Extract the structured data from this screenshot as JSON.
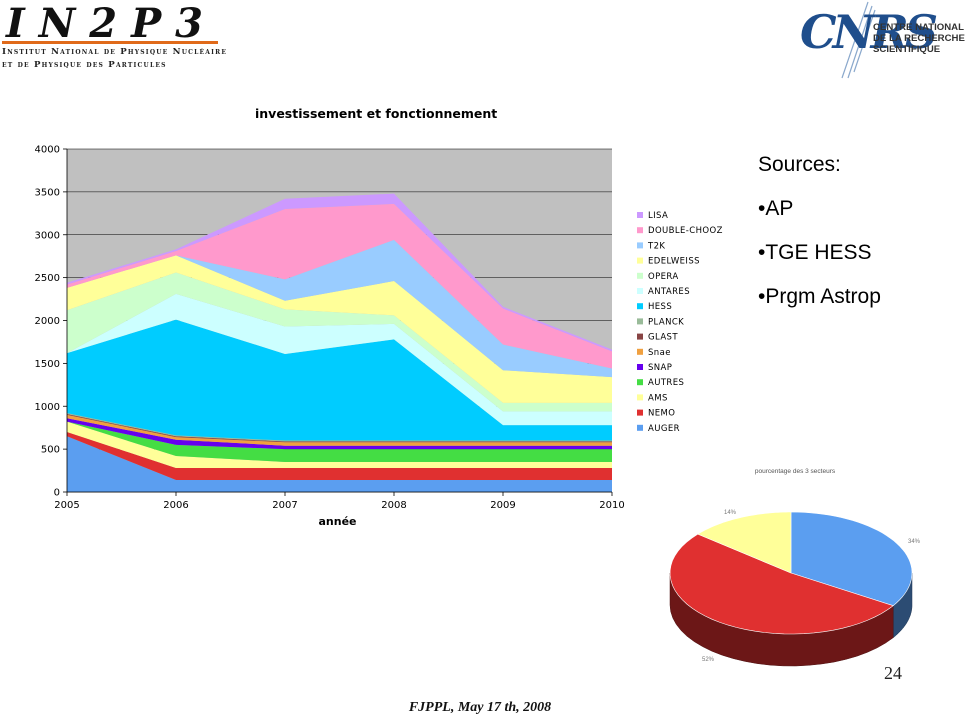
{
  "header": {
    "in2p3_logo": {
      "wordmark": "IN2P3",
      "line1": "Institut National de Physique Nucléaire",
      "line2": "et de Physique des Particules"
    },
    "cnrs_logo": {
      "wordmark": "CNRS",
      "text": "CENTRE NATIONAL\nDE LA RECHERCHE\nSCIENTIFIQUE"
    }
  },
  "chart_data": [
    {
      "type": "area",
      "stacked": true,
      "title": "investissement et fonctionnement",
      "xlabel": "année",
      "ylabel": "",
      "x": [
        "2005",
        "2006",
        "2007",
        "2008",
        "2009",
        "2010"
      ],
      "ylim": [
        0,
        4000
      ],
      "yticks": [
        0,
        500,
        1000,
        1500,
        2000,
        2500,
        3000,
        3500,
        4000
      ],
      "grid": true,
      "plot_background": "#c0c0c0",
      "legend_position": "right",
      "series": [
        {
          "name": "AUGER",
          "color": "#5b9ef0",
          "values": [
            650,
            140,
            140,
            140,
            140,
            140
          ]
        },
        {
          "name": "NEMO",
          "color": "#e03030",
          "values": [
            50,
            140,
            140,
            140,
            140,
            140
          ]
        },
        {
          "name": "AMS",
          "color": "#ffff99",
          "values": [
            120,
            140,
            70,
            70,
            70,
            70
          ]
        },
        {
          "name": "AUTRES",
          "color": "#44dd44",
          "values": [
            0,
            130,
            150,
            150,
            150,
            150
          ]
        },
        {
          "name": "SNAP",
          "color": "#6600ee",
          "values": [
            40,
            60,
            40,
            40,
            40,
            40
          ]
        },
        {
          "name": "Snae",
          "color": "#f0a040",
          "values": [
            40,
            30,
            40,
            40,
            40,
            40
          ]
        },
        {
          "name": "GLAST",
          "color": "#884444",
          "values": [
            10,
            10,
            10,
            10,
            10,
            10
          ]
        },
        {
          "name": "PLANCK",
          "color": "#99bb99",
          "values": [
            10,
            10,
            10,
            10,
            10,
            10
          ]
        },
        {
          "name": "HESS",
          "color": "#00ccff",
          "values": [
            700,
            1350,
            1010,
            1180,
            180,
            180
          ]
        },
        {
          "name": "ANTARES",
          "color": "#ccffff",
          "values": [
            0,
            300,
            320,
            180,
            160,
            160
          ]
        },
        {
          "name": "OPERA",
          "color": "#ccffcc",
          "values": [
            500,
            250,
            200,
            100,
            100,
            100
          ]
        },
        {
          "name": "EDELWEISS",
          "color": "#ffff99",
          "values": [
            260,
            200,
            100,
            400,
            380,
            300
          ]
        },
        {
          "name": "T2K",
          "color": "#99ccff",
          "values": [
            0,
            0,
            250,
            480,
            300,
            100
          ]
        },
        {
          "name": "DOUBLE-CHOOZ",
          "color": "#ff99cc",
          "values": [
            40,
            50,
            820,
            420,
            420,
            200
          ]
        },
        {
          "name": "LISA",
          "color": "#cc99ff",
          "values": [
            20,
            20,
            120,
            120,
            20,
            20
          ]
        }
      ]
    },
    {
      "type": "pie",
      "title": "pourcentage des 3 secteurs",
      "labels": [
        "34%",
        "52%",
        "14%"
      ],
      "values": [
        34,
        52,
        14
      ],
      "colors": [
        "#5b9ef0",
        "#e03030",
        "#ffff99"
      ],
      "legend_position": "none"
    }
  ],
  "sources": {
    "heading": "Sources:",
    "items": [
      "•AP",
      "•TGE HESS",
      "•Prgm Astrop"
    ]
  },
  "slide_number": "24",
  "footer": "FJPPL, May 17 th, 2008"
}
